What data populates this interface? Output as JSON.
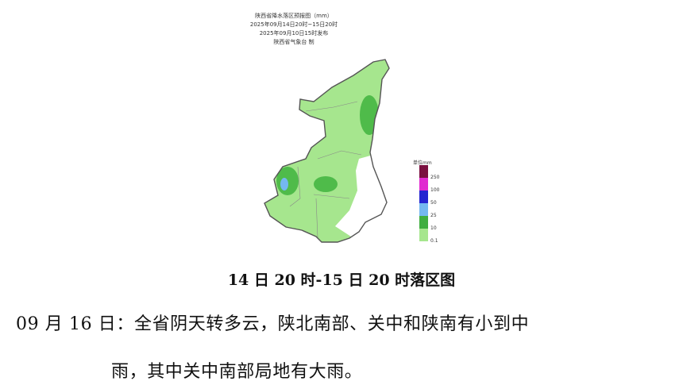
{
  "map": {
    "title_lines": [
      "陕西省降水落区预报图（mm）",
      "2025年09月14日20时~15日20时",
      "2025年09月10日15时发布",
      "陕西省气象台 制"
    ],
    "legend": {
      "unit": "单位mm",
      "bins": [
        {
          "color": "#7a1040"
        },
        {
          "label": "250",
          "color": "#e02ad0"
        },
        {
          "label": "100",
          "color": "#2424d0"
        },
        {
          "label": "50",
          "color": "#74b8f0"
        },
        {
          "label": "25",
          "color": "#3fae3f"
        },
        {
          "label": "10",
          "color": "#a6e68e"
        },
        {
          "label": "0.1"
        }
      ]
    }
  },
  "caption": "14 日 20 时-15 日 20 时落区图",
  "paragraph": {
    "line1": "09 月 16 日：全省阴天转多云，陕北南部、关中和陕南有小到中",
    "line2": "雨，其中关中南部局地有大雨。"
  }
}
